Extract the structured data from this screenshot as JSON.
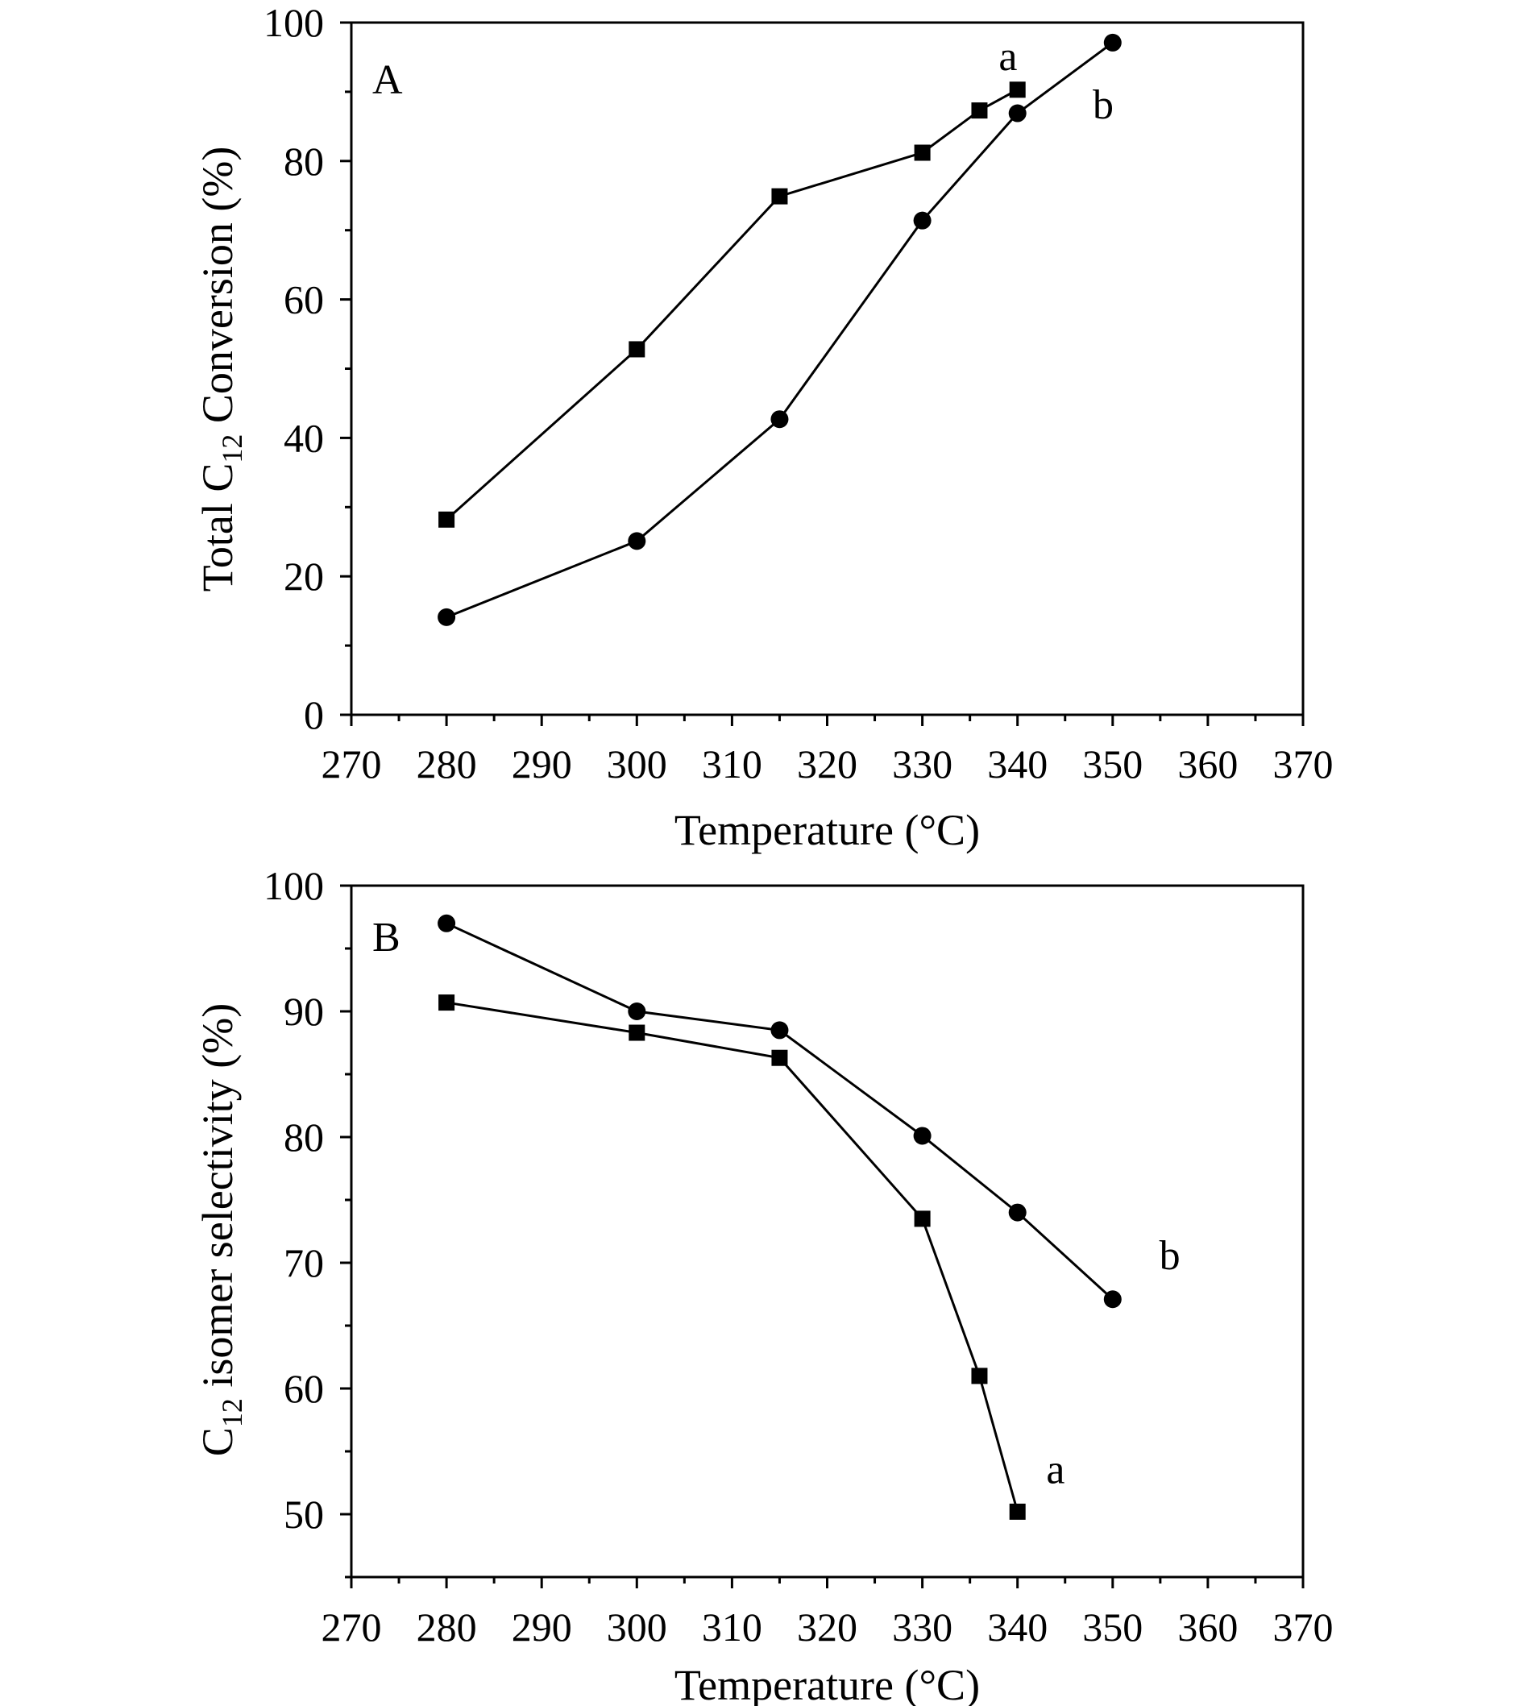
{
  "chart_data": [
    {
      "type": "line",
      "panel_label": "A",
      "xlabel": "Temperature (°C)",
      "ylabel": {
        "prefix": "Total C",
        "subscript": "12",
        "suffix": " Conversion (%)"
      },
      "xlim": [
        270,
        370
      ],
      "ylim": [
        0,
        100
      ],
      "x_ticks": [
        270,
        280,
        290,
        300,
        310,
        320,
        330,
        340,
        350,
        360,
        370
      ],
      "y_ticks": [
        0,
        20,
        40,
        60,
        80,
        100
      ],
      "grid": false,
      "series": [
        {
          "name": "a",
          "marker": "square",
          "x": [
            280,
            300,
            315,
            330,
            336,
            340
          ],
          "y": [
            28.2,
            52.8,
            74.9,
            81.2,
            87.3,
            90.3
          ]
        },
        {
          "name": "b",
          "marker": "circle",
          "x": [
            280,
            300,
            315,
            330,
            340,
            350
          ],
          "y": [
            14.1,
            25.1,
            42.7,
            71.4,
            86.9,
            97.1
          ]
        }
      ],
      "annotations": [
        {
          "text": "a",
          "x": 339,
          "y": 95
        },
        {
          "text": "b",
          "x": 349,
          "y": 88
        }
      ]
    },
    {
      "type": "line",
      "panel_label": "B",
      "xlabel": "Temperature (°C)",
      "ylabel": {
        "prefix": "C",
        "subscript": "12",
        "suffix": " isomer selectivity (%)"
      },
      "xlim": [
        270,
        370
      ],
      "ylim": [
        45,
        100
      ],
      "x_ticks": [
        270,
        280,
        290,
        300,
        310,
        320,
        330,
        340,
        350,
        360,
        370
      ],
      "y_ticks": [
        50,
        60,
        70,
        80,
        90,
        100
      ],
      "grid": false,
      "series": [
        {
          "name": "a",
          "marker": "square",
          "x": [
            280,
            300,
            315,
            330,
            336,
            340
          ],
          "y": [
            90.7,
            88.3,
            86.3,
            73.5,
            61.0,
            50.2
          ]
        },
        {
          "name": "b",
          "marker": "circle",
          "x": [
            280,
            300,
            315,
            330,
            340,
            350
          ],
          "y": [
            97.0,
            90.0,
            88.5,
            80.1,
            74.0,
            67.1
          ]
        }
      ],
      "annotations": [
        {
          "text": "b",
          "x": 356,
          "y": 70.5
        },
        {
          "text": "a",
          "x": 344,
          "y": 53.5
        }
      ]
    }
  ]
}
